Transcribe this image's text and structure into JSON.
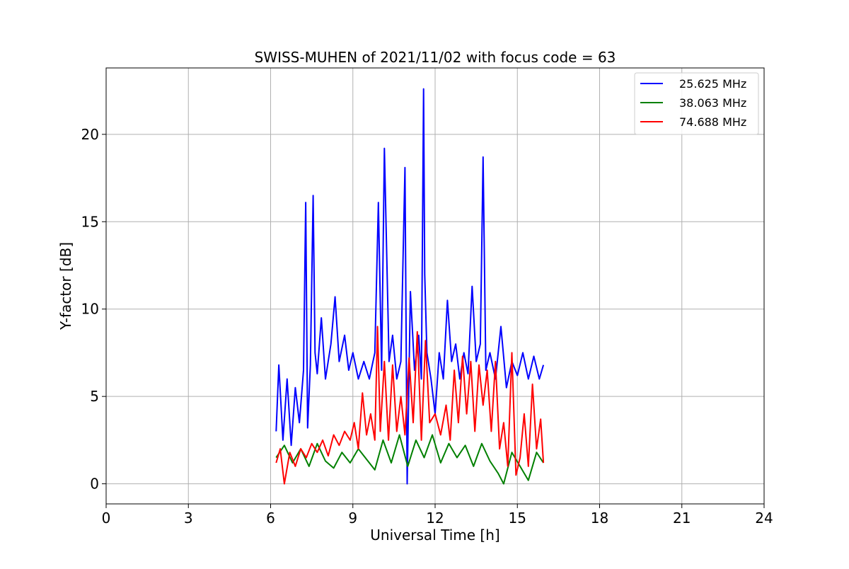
{
  "chart_data": {
    "type": "line",
    "title": "SWISS-MUHEN of 2021/11/02 with focus code = 63",
    "xlabel": "Universal Time [h]",
    "ylabel": "Y-factor [dB]",
    "xlim": [
      0,
      24
    ],
    "ylim": [
      -1.15,
      23.8
    ],
    "xticks": [
      0,
      3,
      6,
      9,
      12,
      15,
      18,
      21,
      24
    ],
    "yticks": [
      0,
      5,
      10,
      15,
      20
    ],
    "grid": true,
    "legend_position": "top-right",
    "series": [
      {
        "name": "25.625 MHz",
        "color": "#0000ff",
        "x": [
          6.2,
          6.3,
          6.45,
          6.6,
          6.75,
          6.9,
          7.05,
          7.2,
          7.28,
          7.35,
          7.45,
          7.55,
          7.62,
          7.7,
          7.85,
          8.0,
          8.2,
          8.35,
          8.5,
          8.7,
          8.85,
          9.0,
          9.2,
          9.4,
          9.6,
          9.8,
          9.93,
          10.05,
          10.15,
          10.25,
          10.32,
          10.45,
          10.6,
          10.75,
          10.9,
          10.98,
          11.1,
          11.25,
          11.4,
          11.5,
          11.58,
          11.62,
          11.7,
          11.85,
          12.0,
          12.15,
          12.3,
          12.45,
          12.6,
          12.75,
          12.9,
          13.05,
          13.2,
          13.35,
          13.5,
          13.65,
          13.75,
          13.85,
          14.0,
          14.2,
          14.4,
          14.6,
          14.8,
          15.0,
          15.2,
          15.4,
          15.6,
          15.8,
          15.95
        ],
        "y": [
          3.0,
          6.8,
          2.5,
          6.0,
          2.2,
          5.5,
          3.5,
          6.5,
          16.1,
          3.2,
          6.8,
          16.5,
          7.5,
          6.3,
          9.5,
          6.0,
          8.0,
          10.7,
          7.0,
          8.5,
          6.5,
          7.5,
          6.0,
          7.0,
          6.0,
          7.5,
          16.1,
          6.5,
          19.2,
          12.0,
          7.0,
          8.5,
          6.0,
          7.0,
          18.1,
          0.0,
          11.0,
          6.5,
          8.5,
          6.0,
          22.6,
          12.0,
          7.5,
          6.0,
          4.0,
          7.5,
          6.0,
          10.5,
          7.0,
          8.0,
          6.0,
          7.5,
          6.3,
          11.3,
          7.0,
          8.0,
          18.7,
          6.5,
          7.5,
          6.0,
          9.0,
          5.5,
          7.0,
          6.2,
          7.5,
          6.0,
          7.3,
          6.0,
          6.8
        ]
      },
      {
        "name": "38.063 MHz",
        "color": "#008000",
        "x": [
          6.2,
          6.5,
          6.8,
          7.1,
          7.4,
          7.7,
          8.0,
          8.3,
          8.6,
          8.9,
          9.2,
          9.5,
          9.8,
          10.1,
          10.4,
          10.7,
          11.0,
          11.3,
          11.6,
          11.9,
          12.2,
          12.5,
          12.8,
          13.1,
          13.4,
          13.7,
          14.0,
          14.3,
          14.5,
          14.8,
          15.1,
          15.4,
          15.7,
          15.95
        ],
        "y": [
          1.5,
          2.2,
          1.2,
          2.0,
          1.0,
          2.3,
          1.3,
          0.9,
          1.8,
          1.2,
          2.0,
          1.4,
          0.8,
          2.5,
          1.2,
          2.8,
          1.0,
          2.5,
          1.5,
          2.8,
          1.2,
          2.3,
          1.5,
          2.2,
          1.0,
          2.3,
          1.3,
          0.6,
          0.0,
          1.8,
          1.0,
          0.2,
          1.8,
          1.2
        ]
      },
      {
        "name": "74.688 MHz",
        "color": "#ff0000",
        "x": [
          6.2,
          6.35,
          6.5,
          6.7,
          6.9,
          7.1,
          7.3,
          7.5,
          7.7,
          7.9,
          8.1,
          8.3,
          8.5,
          8.7,
          8.9,
          9.05,
          9.2,
          9.35,
          9.5,
          9.65,
          9.8,
          9.9,
          10.0,
          10.15,
          10.3,
          10.45,
          10.6,
          10.75,
          10.9,
          11.05,
          11.2,
          11.35,
          11.5,
          11.65,
          11.8,
          12.0,
          12.2,
          12.4,
          12.55,
          12.7,
          12.85,
          13.0,
          13.15,
          13.3,
          13.45,
          13.6,
          13.75,
          13.9,
          14.05,
          14.2,
          14.35,
          14.5,
          14.65,
          14.8,
          14.95,
          15.1,
          15.25,
          15.4,
          15.55,
          15.7,
          15.85,
          15.95
        ],
        "y": [
          1.2,
          2.0,
          0.0,
          1.8,
          1.0,
          2.0,
          1.5,
          2.3,
          1.8,
          2.5,
          1.6,
          2.8,
          2.2,
          3.0,
          2.5,
          3.5,
          2.0,
          5.2,
          2.8,
          4.0,
          2.5,
          9.0,
          3.0,
          7.0,
          2.5,
          6.8,
          3.0,
          5.0,
          2.8,
          7.2,
          3.5,
          8.7,
          2.5,
          8.2,
          3.5,
          4.0,
          2.8,
          4.5,
          2.5,
          6.5,
          3.5,
          7.3,
          4.0,
          7.0,
          3.0,
          6.8,
          4.5,
          6.5,
          3.0,
          7.0,
          2.0,
          3.5,
          1.0,
          7.5,
          0.5,
          1.5,
          4.0,
          1.0,
          5.7,
          2.0,
          3.7,
          1.2
        ]
      }
    ]
  }
}
